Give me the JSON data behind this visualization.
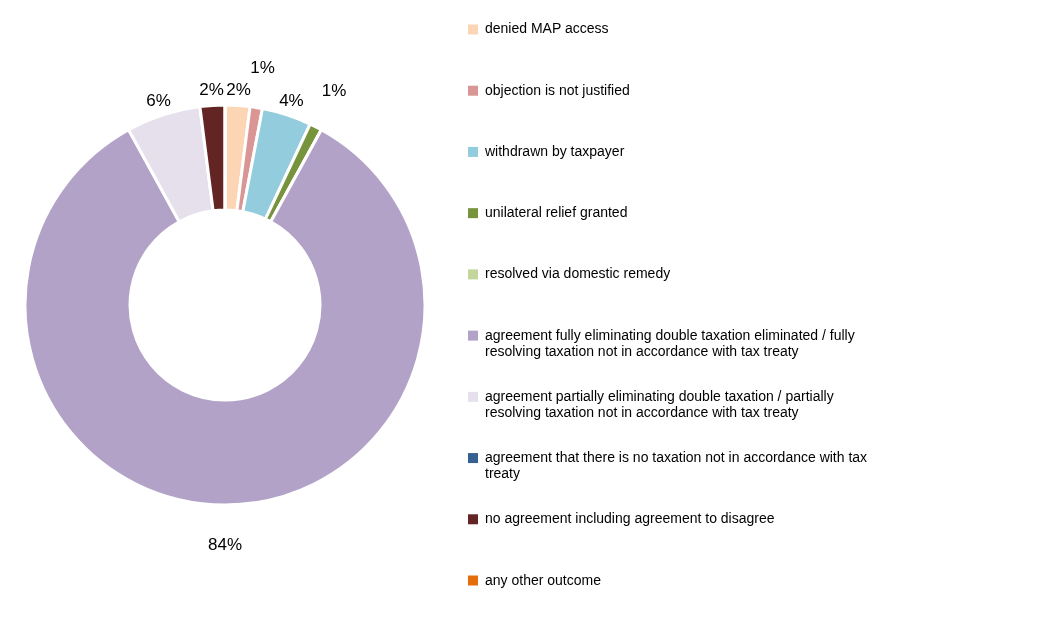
{
  "chart_data": {
    "type": "donut",
    "categories": [
      "denied MAP access",
      "objection is not justified",
      "withdrawn by taxpayer",
      "unilateral relief granted",
      "resolved via domestic remedy",
      "agreement fully eliminating double taxation eliminated / fully resolving taxation not in accordance with tax treaty",
      "agreement partially eliminating double taxation / partially resolving taxation not in accordance with tax treaty",
      "agreement that there is no taxation not in accordance with tax treaty",
      "no agreement including agreement to disagree",
      "any other outcome"
    ],
    "values": [
      2,
      1,
      4,
      1,
      0,
      84,
      6,
      0,
      2,
      0
    ],
    "colors": [
      "#fcd5b5",
      "#d99694",
      "#93cddd",
      "#77933c",
      "#c3d69b",
      "#b3a2c7",
      "#e6e0ec",
      "#376092",
      "#632523",
      "#e46c0a"
    ],
    "value_labels": [
      "2%",
      "1%",
      "4%",
      "1%",
      null,
      "84%",
      "6%",
      null,
      "2%",
      null
    ],
    "legend": "right"
  }
}
